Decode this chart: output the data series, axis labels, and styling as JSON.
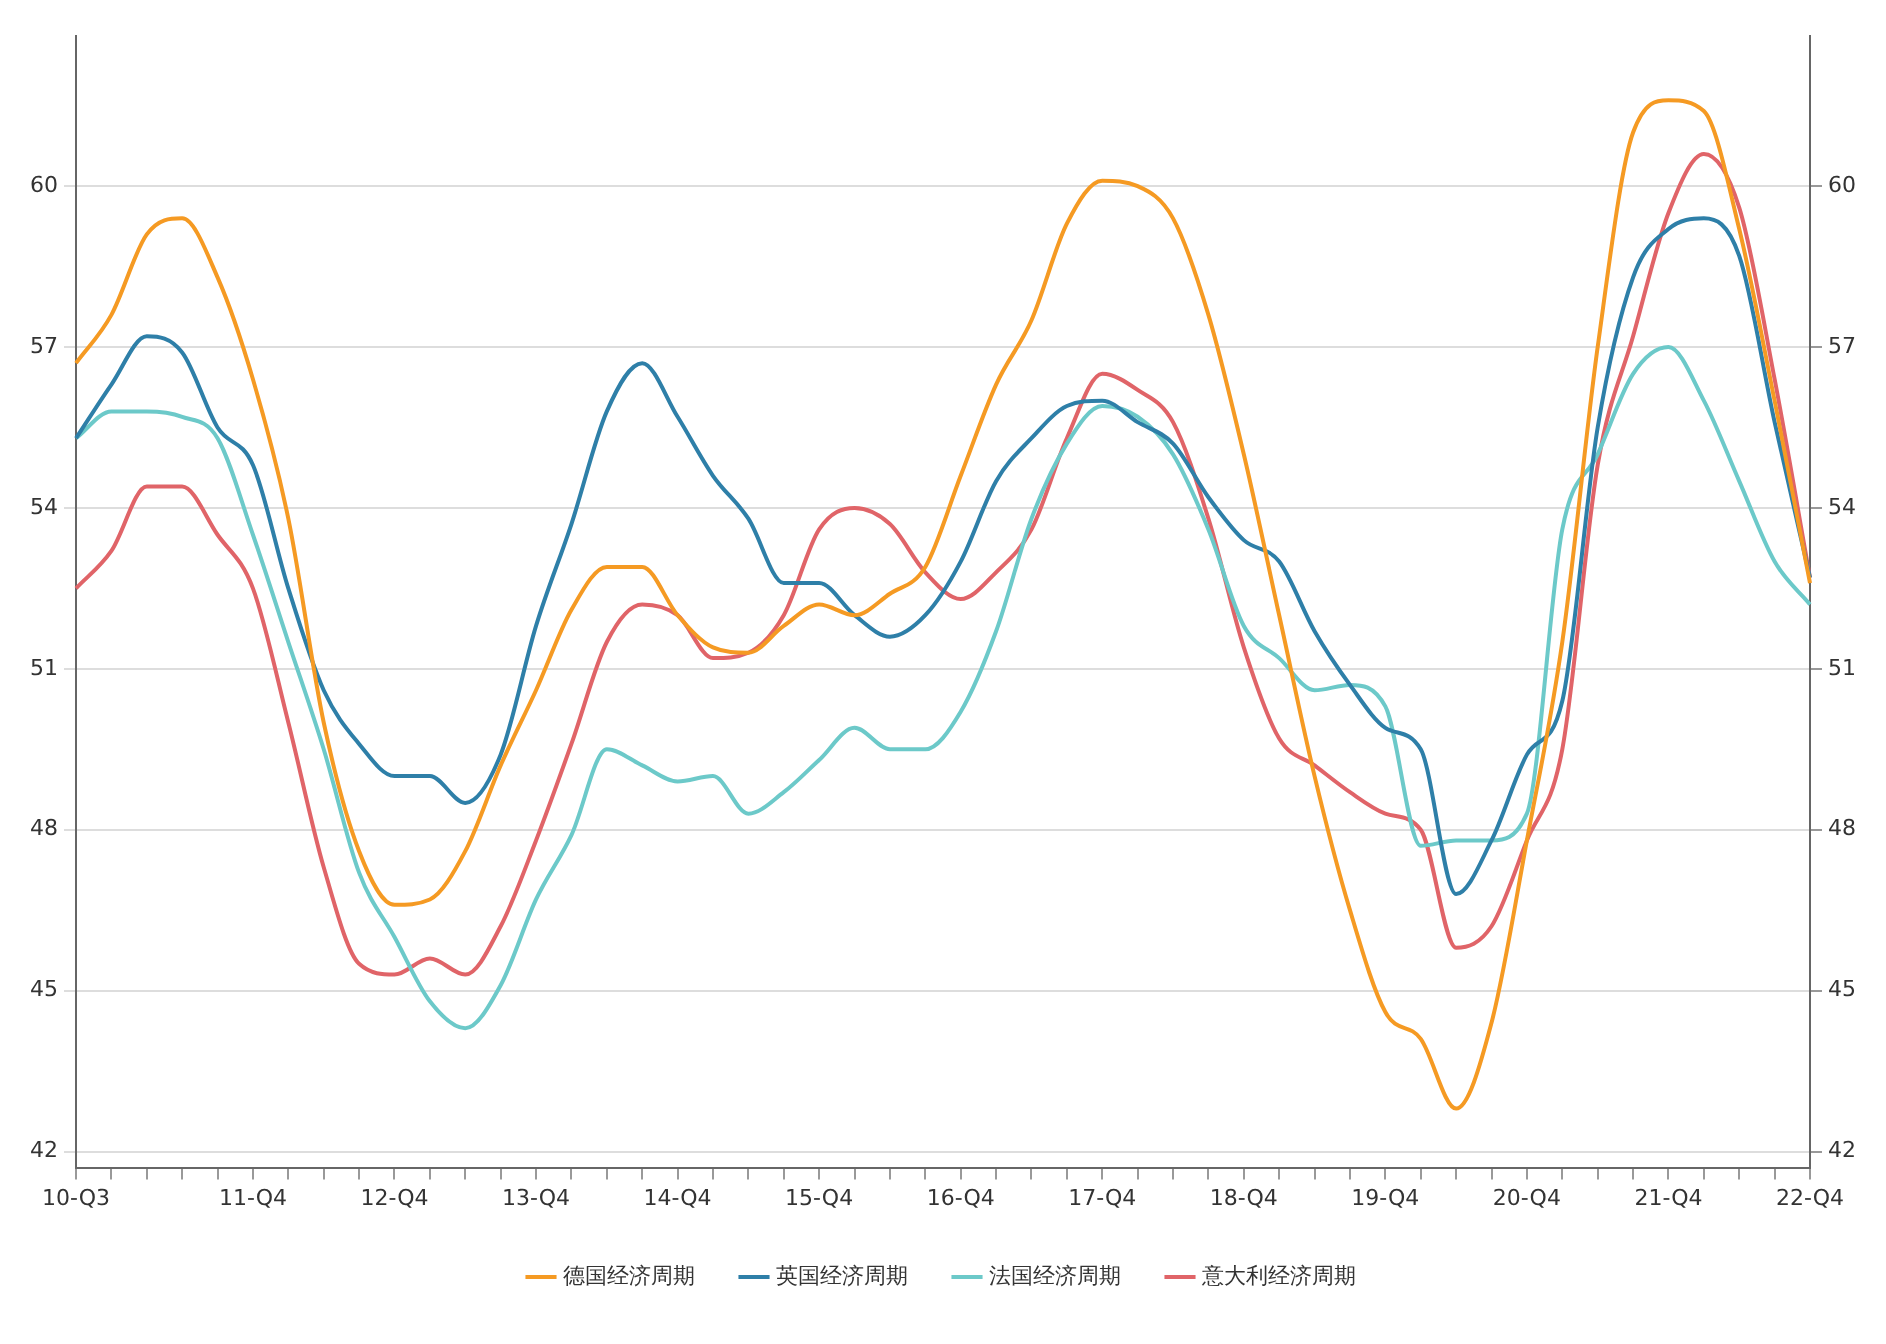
{
  "chart_data": {
    "type": "line",
    "categories": [
      "10-Q3",
      null,
      null,
      null,
      null,
      "11-Q4",
      null,
      null,
      null,
      "12-Q4",
      null,
      null,
      null,
      "13-Q4",
      null,
      null,
      null,
      "14-Q4",
      null,
      null,
      null,
      "15-Q4",
      null,
      null,
      null,
      "16-Q4",
      null,
      null,
      null,
      "17-Q4",
      null,
      null,
      null,
      "18-Q4",
      null,
      null,
      null,
      "19-Q4",
      null,
      null,
      null,
      "20-Q4",
      null,
      null,
      null,
      "21-Q4",
      null,
      null,
      null,
      "22-Q4"
    ],
    "series": [
      {
        "name": "德国经济周期",
        "color": "#f59a23",
        "values": [
          56.7,
          57.6,
          59.1,
          59.4,
          58.3,
          56.4,
          53.8,
          50.0,
          47.6,
          46.6,
          46.7,
          47.6,
          49.2,
          50.6,
          52.1,
          52.9,
          52.9,
          52.0,
          51.4,
          51.3,
          51.8,
          52.2,
          52.0,
          52.4,
          52.9,
          54.6,
          56.3,
          57.5,
          59.3,
          60.1,
          60.0,
          59.4,
          57.6,
          55.0,
          52.0,
          49.0,
          46.5,
          44.6,
          44.1,
          42.8,
          44.4,
          47.8,
          51.5,
          57.0,
          61.0,
          61.6,
          61.4,
          59.2,
          56.0,
          52.6
        ]
      },
      {
        "name": "英国经济周期",
        "color": "#2e7fa8",
        "values": [
          55.3,
          56.3,
          57.2,
          56.9,
          55.5,
          54.8,
          52.5,
          50.6,
          49.6,
          49.0,
          49.0,
          48.5,
          49.4,
          51.8,
          53.7,
          55.8,
          56.7,
          55.7,
          54.6,
          53.8,
          52.6,
          52.6,
          52.0,
          51.6,
          52.0,
          53.0,
          54.5,
          55.3,
          55.9,
          56.0,
          55.6,
          55.2,
          54.2,
          53.4,
          53.0,
          51.7,
          50.7,
          49.9,
          49.5,
          46.8,
          47.8,
          49.4,
          50.4,
          55.5,
          58.3,
          59.2,
          59.4,
          58.7,
          55.6,
          52.7
        ]
      },
      {
        "name": "法国经济周期",
        "color": "#6cc9c9",
        "values": [
          55.3,
          55.8,
          55.8,
          55.7,
          55.3,
          53.5,
          51.5,
          49.5,
          47.2,
          46.0,
          44.8,
          44.3,
          45.1,
          46.7,
          47.9,
          49.5,
          49.2,
          48.9,
          49.0,
          48.3,
          48.7,
          49.3,
          49.9,
          49.5,
          49.5,
          50.2,
          51.7,
          53.8,
          55.2,
          55.9,
          55.7,
          55.0,
          53.6,
          51.8,
          51.2,
          50.6,
          50.7,
          50.3,
          47.7,
          47.8,
          47.8,
          48.3,
          53.6,
          55.0,
          56.5,
          57.0,
          56.0,
          54.5,
          53.0,
          52.2
        ]
      },
      {
        "name": "意大利经济周期",
        "color": "#e06468",
        "values": [
          52.5,
          53.2,
          54.4,
          54.4,
          53.5,
          52.5,
          50.0,
          47.3,
          45.5,
          45.3,
          45.6,
          45.3,
          46.2,
          47.8,
          49.6,
          51.5,
          52.2,
          52.0,
          51.2,
          51.3,
          52.0,
          53.6,
          54.0,
          53.7,
          52.8,
          52.3,
          52.8,
          53.6,
          55.3,
          56.5,
          56.2,
          55.6,
          53.8,
          51.4,
          49.7,
          49.2,
          48.7,
          48.3,
          48.0,
          45.8,
          46.2,
          47.8,
          49.5,
          54.8,
          57.2,
          59.5,
          60.6,
          59.6,
          56.4,
          52.7
        ]
      }
    ],
    "ylim": [
      41.7,
      62.8
    ],
    "yticks": [
      42,
      45,
      48,
      51,
      54,
      57,
      60
    ],
    "y2lim": [
      41.7,
      62.8
    ],
    "y2ticks": [
      42,
      45,
      48,
      51,
      54,
      57,
      60
    ],
    "grid": "y",
    "legend": "bottom",
    "marker": "none",
    "line_style": "solid"
  }
}
